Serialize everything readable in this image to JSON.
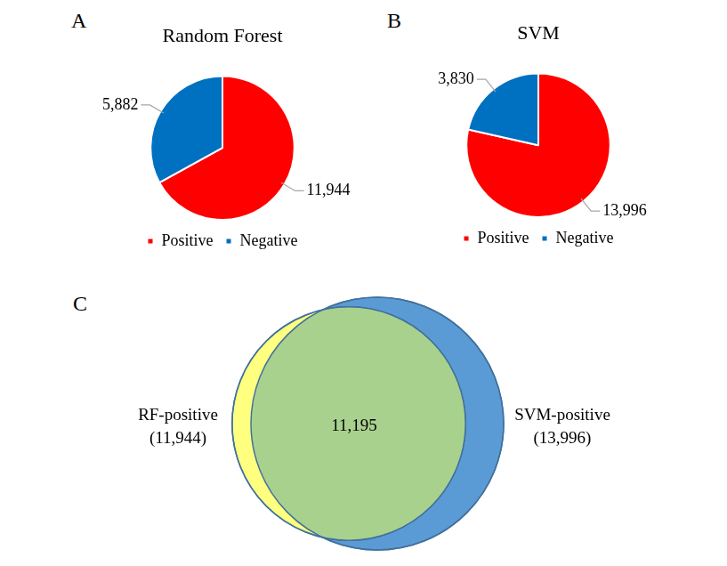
{
  "chart_data": [
    {
      "panel": "A",
      "type": "pie",
      "title": "Random Forest",
      "categories": [
        "Positive",
        "Negative"
      ],
      "values": [
        11944,
        5882
      ],
      "value_labels": [
        "11,944",
        "5,882"
      ],
      "colors": [
        "#ff0000",
        "#0070c0"
      ],
      "data_labels": true,
      "legend": "bottom"
    },
    {
      "panel": "B",
      "type": "pie",
      "title": "SVM",
      "categories": [
        "Positive",
        "Negative"
      ],
      "values": [
        13996,
        3830
      ],
      "value_labels": [
        "13,996",
        "3,830"
      ],
      "colors": [
        "#ff0000",
        "#0070c0"
      ],
      "data_labels": true,
      "legend": "bottom"
    },
    {
      "panel": "C",
      "type": "venn",
      "sets": [
        {
          "name": "RF-positive",
          "size": 11944,
          "size_label": "(11,944)",
          "color": "#ffff80"
        },
        {
          "name": "SVM-positive",
          "size": 13996,
          "size_label": "(13,996)",
          "color": "#5b9bd5"
        }
      ],
      "intersection": 11195,
      "intersection_label": "11,195",
      "intersection_color": "#a9d18e"
    }
  ]
}
